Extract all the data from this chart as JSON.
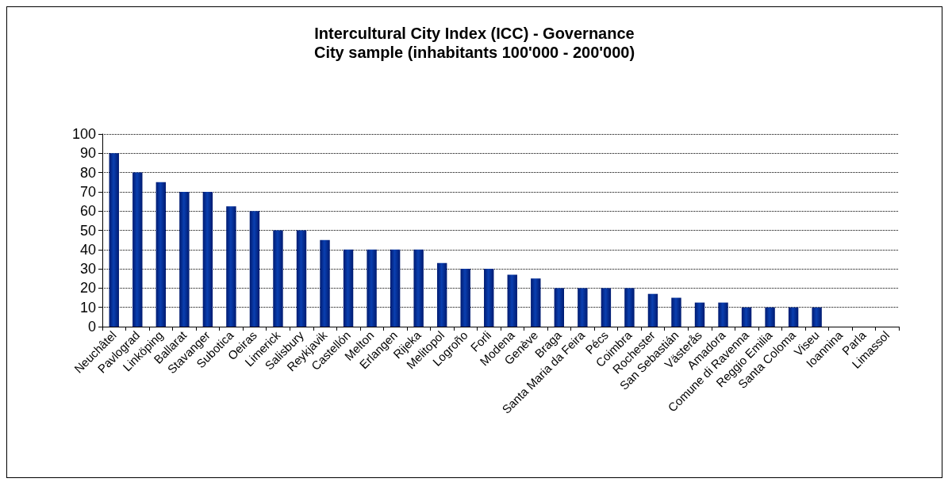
{
  "chart_data": {
    "type": "bar",
    "title": "Intercultural City Index (ICC) - Governance",
    "subtitle": "City sample (inhabitants 100'000 - 200'000)",
    "categories": [
      "Neuchâtel",
      "Pavlograd",
      "Linköping",
      "Ballarat",
      "Stavanger",
      "Subotica",
      "Oeiras",
      "Limerick",
      "Salisbury",
      "Reykjavik",
      "Castellón",
      "Melton",
      "Erlangen",
      "Rijeka",
      "Melitopol",
      "Logroño",
      "Forli",
      "Modena",
      "Genève",
      "Braga",
      "Santa Maria da Feira",
      "Pécs",
      "Coimbra",
      "Rochester",
      "San Sebastián",
      "Västerås",
      "Amadora",
      "Comune di Ravenna",
      "Reggio Emilia",
      "Santa Coloma",
      "Viseu",
      "Ioannina",
      "Parla",
      "Limassol"
    ],
    "values": [
      90,
      80,
      75,
      70,
      70,
      62.5,
      60,
      50,
      50,
      45,
      40,
      40,
      40,
      40,
      33,
      30,
      30,
      27,
      25,
      20,
      20,
      20,
      20,
      17,
      15,
      12.5,
      12.5,
      10,
      10,
      10,
      10,
      0,
      0,
      0
    ],
    "color": "#0a3fb0",
    "ylim": [
      0,
      100
    ],
    "yticks": [
      0,
      10,
      20,
      30,
      40,
      50,
      60,
      70,
      80,
      90,
      100
    ],
    "grid": "y"
  }
}
